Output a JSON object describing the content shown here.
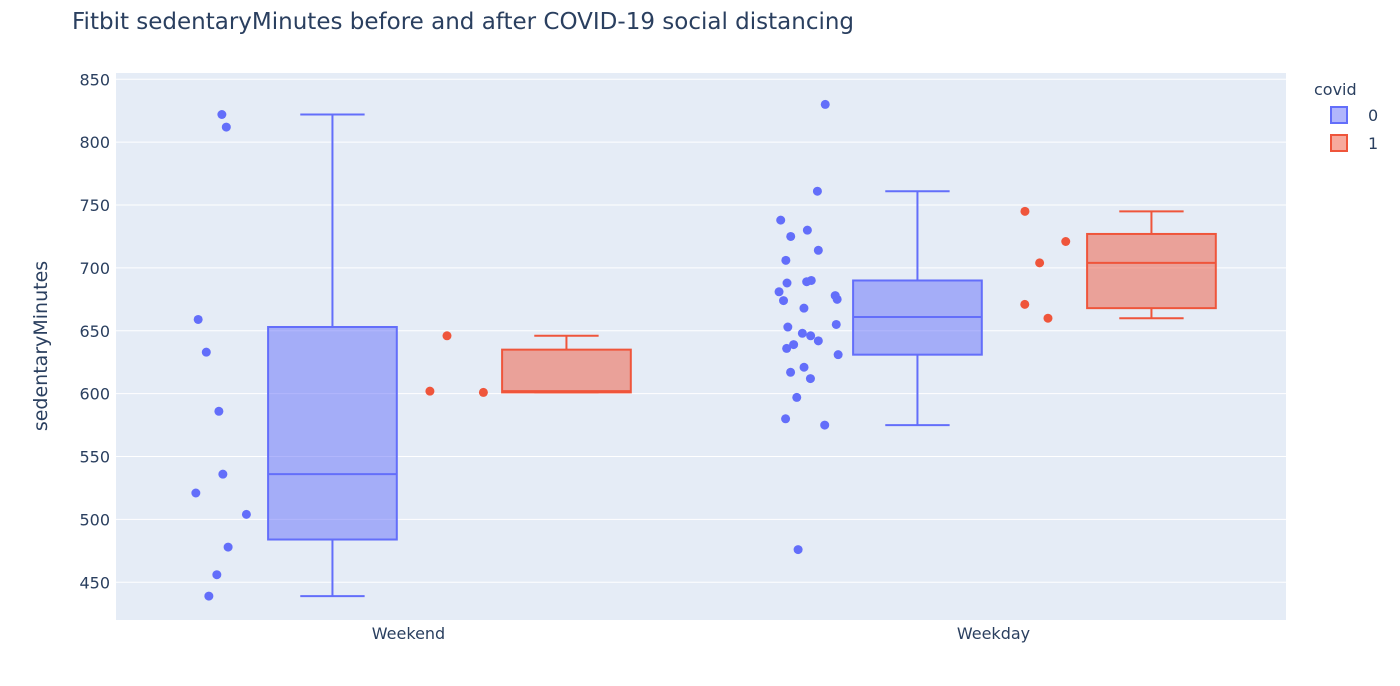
{
  "chart_data": {
    "type": "box",
    "title": "Fitbit sedentaryMinutes before and after COVID-19 social distancing",
    "xlabel": "",
    "ylabel": "sedentaryMinutes",
    "ylim": [
      420,
      855
    ],
    "yticks": [
      450,
      500,
      550,
      600,
      650,
      700,
      750,
      800,
      850
    ],
    "categories": [
      "Weekend",
      "Weekday"
    ],
    "grid": true,
    "legend": {
      "title": "covid",
      "position": "top-right"
    },
    "series": [
      {
        "name": "0",
        "color": "#636efa",
        "boxes": [
          {
            "category": "Weekend",
            "min": 439,
            "q1": 484,
            "median": 536,
            "q3": 653,
            "max": 822,
            "points": [
              822,
              812,
              659,
              633,
              586,
              536,
              521,
              504,
              478,
              456,
              439
            ]
          },
          {
            "category": "Weekday",
            "min": 575,
            "q1": 631,
            "median": 661,
            "q3": 690,
            "max": 761,
            "points": [
              830,
              761,
              738,
              730,
              725,
              714,
              706,
              690,
              689,
              688,
              681,
              678,
              675,
              674,
              668,
              655,
              653,
              648,
              646,
              642,
              639,
              636,
              631,
              621,
              617,
              612,
              597,
              580,
              575,
              476
            ]
          }
        ]
      },
      {
        "name": "1",
        "color": "#ef553b",
        "boxes": [
          {
            "category": "Weekend",
            "min": 601,
            "q1": 601,
            "median": 602,
            "q3": 635,
            "max": 646,
            "points": [
              646,
              602,
              601
            ]
          },
          {
            "category": "Weekday",
            "min": 660,
            "q1": 668,
            "median": 704,
            "q3": 727,
            "max": 745,
            "points": [
              745,
              721,
              704,
              671,
              660
            ]
          }
        ]
      }
    ]
  }
}
